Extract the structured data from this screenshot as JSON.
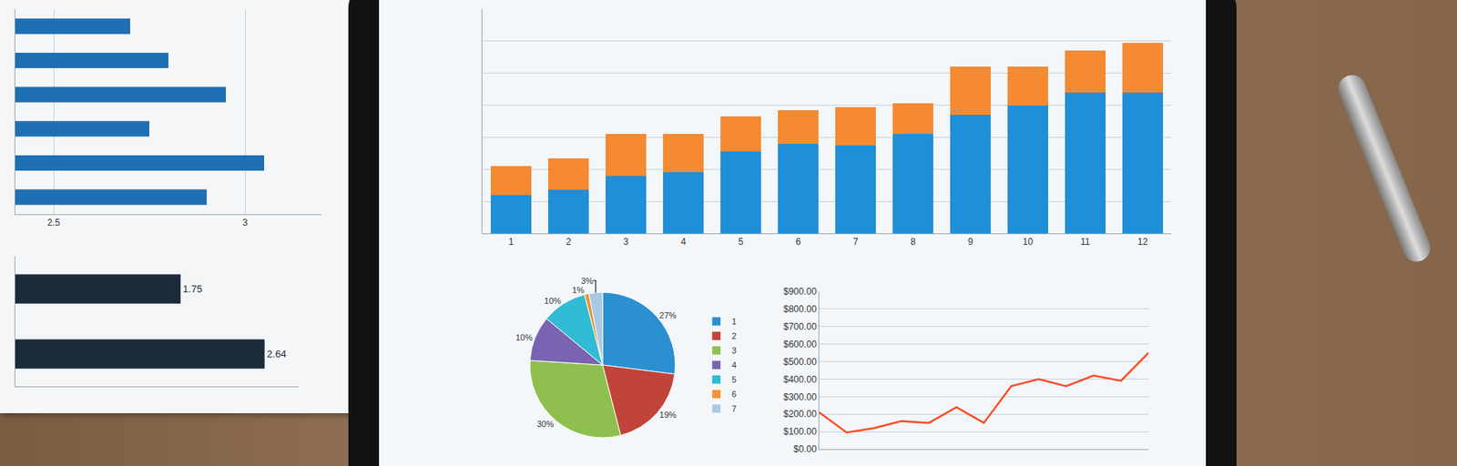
{
  "chart_data": [
    {
      "type": "bar",
      "stacked": true,
      "tick_labels": "x",
      "grid": true,
      "categories": [
        "1",
        "2",
        "3",
        "4",
        "5",
        "6",
        "7",
        "8",
        "9",
        "10",
        "11",
        "12"
      ],
      "series": [
        {
          "color": "#1f8fd8",
          "values": [
            1.2,
            1.35,
            1.8,
            1.9,
            2.55,
            2.8,
            2.75,
            3.1,
            3.7,
            4.0,
            4.4,
            4.4
          ]
        },
        {
          "color": "#f58a32",
          "values": [
            0.9,
            1.0,
            1.3,
            1.2,
            1.1,
            1.05,
            1.2,
            0.95,
            1.5,
            1.2,
            1.3,
            1.55
          ]
        }
      ],
      "ylim": [
        0,
        7
      ],
      "yticks": [
        0,
        1,
        2,
        3,
        4,
        5,
        6,
        7
      ]
    },
    {
      "type": "pie",
      "legend": "right",
      "categories": [
        "1",
        "2",
        "3",
        "4",
        "5",
        "6",
        "7"
      ],
      "values": [
        27,
        19,
        30,
        10,
        10,
        1,
        3
      ],
      "value_labels": [
        "27%",
        "19%",
        "30%",
        "10%",
        "10%",
        "1%",
        "3%"
      ],
      "colors": [
        "#2b8fd0",
        "#c0443a",
        "#8fc04f",
        "#7a63b0",
        "#2fbcd4",
        "#f0913a",
        "#a9c9e6"
      ]
    },
    {
      "type": "line",
      "color": "#ff4a22",
      "grid": true,
      "tick_labels": "y",
      "categories": [
        null,
        null,
        null,
        null,
        null,
        null,
        null,
        null,
        null,
        null,
        null,
        null,
        null
      ],
      "values": [
        210,
        95,
        120,
        160,
        150,
        240,
        150,
        360,
        400,
        360,
        420,
        390,
        550
      ],
      "ylim": [
        0,
        900
      ],
      "yticks": [
        {
          "value": 0,
          "label": "$0.00"
        },
        {
          "value": 100,
          "label": "$100.00"
        },
        {
          "value": 200,
          "label": "$200.00"
        },
        {
          "value": 300,
          "label": "$300.00"
        },
        {
          "value": 400,
          "label": "$400.00"
        },
        {
          "value": 500,
          "label": "$500.00"
        },
        {
          "value": 600,
          "label": "$600.00"
        },
        {
          "value": 700,
          "label": "$700.00"
        },
        {
          "value": 800,
          "label": "$800.00"
        },
        {
          "value": 900,
          "label": "$900.00"
        }
      ]
    },
    {
      "type": "bar",
      "orientation": "horizontal",
      "tick_labels": "x",
      "grid": true,
      "color": "#1f6fb4",
      "categories": [
        null,
        null,
        null,
        null,
        null,
        null
      ],
      "values": [
        2.7,
        2.8,
        2.95,
        2.75,
        3.05,
        2.9
      ],
      "xlim": [
        2.4,
        3.2
      ],
      "xticks": [
        2.5,
        3
      ]
    },
    {
      "type": "bar",
      "orientation": "horizontal",
      "tick_labels": false,
      "data_labels": true,
      "color": "#1c2b3a",
      "categories": [
        null,
        null
      ],
      "values": [
        1.75,
        2.64
      ],
      "xlim": [
        0,
        3
      ]
    }
  ]
}
